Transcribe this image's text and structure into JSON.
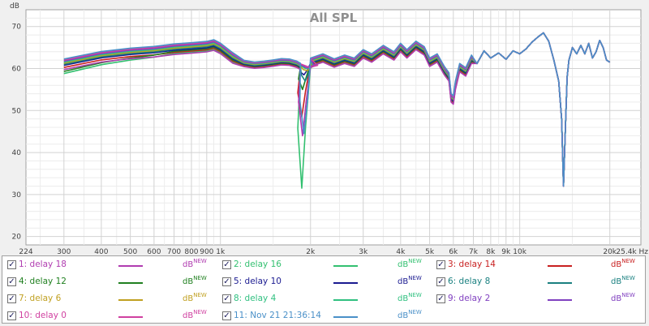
{
  "chart_data": {
    "type": "line",
    "title": "All SPL",
    "ylabel": "dB",
    "xunit": "Hz",
    "xscale": "log",
    "xlim": [
      224,
      25400
    ],
    "ylim": [
      18,
      74
    ],
    "grid": true,
    "x_ticks": [
      {
        "v": 224,
        "label": "224"
      },
      {
        "v": 300,
        "label": "300"
      },
      {
        "v": 400,
        "label": "400"
      },
      {
        "v": 500,
        "label": "500"
      },
      {
        "v": 600,
        "label": "600"
      },
      {
        "v": 700,
        "label": "700"
      },
      {
        "v": 800,
        "label": "800"
      },
      {
        "v": 900,
        "label": "900"
      },
      {
        "v": 1000,
        "label": "1k"
      },
      {
        "v": 2000,
        "label": "2k"
      },
      {
        "v": 3000,
        "label": "3k"
      },
      {
        "v": 4000,
        "label": "4k"
      },
      {
        "v": 5000,
        "label": "5k"
      },
      {
        "v": 6000,
        "label": "6k"
      },
      {
        "v": 7000,
        "label": "7k"
      },
      {
        "v": 8000,
        "label": "8k"
      },
      {
        "v": 9000,
        "label": "9k"
      },
      {
        "v": 10000,
        "label": "10k"
      },
      {
        "v": 20000,
        "label": "20k"
      },
      {
        "v": 25400,
        "label": "25,4k Hz"
      }
    ],
    "y_ticks": [
      20,
      30,
      40,
      50,
      60,
      70
    ],
    "common": {
      "x": [
        300,
        400,
        500,
        600,
        700,
        800,
        900,
        950,
        1000,
        1100,
        1200,
        1300,
        1400,
        1500,
        1600,
        1700,
        1800,
        1850
      ],
      "y": [
        61.0,
        62.8,
        63.6,
        64.0,
        64.6,
        64.9,
        65.2,
        65.6,
        64.8,
        62.5,
        61.2,
        60.8,
        61.0,
        61.3,
        61.6,
        61.5,
        61.0,
        60.5
      ]
    },
    "tail": {
      "x": [
        2000,
        2200,
        2400,
        2600,
        2800,
        3000,
        3200,
        3500,
        3800,
        4000,
        4200,
        4500,
        4800,
        5000,
        5300,
        5600,
        5800,
        5900,
        6000,
        6100,
        6300,
        6600,
        6900,
        7200,
        7600,
        8000,
        8500,
        9000,
        9500,
        10000,
        10500,
        11000,
        11500,
        12000,
        12500,
        13000,
        13500,
        13800,
        14000,
        14200,
        14400,
        14600,
        15000,
        15500,
        16000,
        16500,
        17000,
        17500,
        18000,
        18500,
        19000,
        19500,
        20000
      ],
      "y": [
        61.5,
        62.5,
        61.3,
        62.2,
        61.5,
        63.5,
        62.5,
        64.5,
        63.0,
        65.0,
        63.5,
        65.5,
        64.2,
        61.5,
        62.5,
        59.5,
        58.0,
        53.0,
        52.5,
        56.0,
        60.2,
        59.2,
        62.2,
        61.2,
        64.2,
        62.5,
        63.7,
        62.2,
        64.2,
        63.5,
        64.7,
        66.3,
        67.5,
        68.5,
        66.5,
        62.0,
        57.0,
        48.0,
        32.0,
        45.0,
        58.0,
        62.0,
        65.0,
        63.5,
        65.5,
        63.5,
        66.0,
        62.5,
        64.0,
        66.7,
        65.0,
        62.0,
        61.5
      ]
    },
    "series": [
      {
        "name": "1: delay 18",
        "color": "#b03cb0",
        "unit": "dB",
        "badge": "NEW",
        "dip_x": 1880,
        "dip_y": 44.0
      },
      {
        "name": "2: delay 16",
        "color": "#33c070",
        "unit": "dB",
        "badge": "NEW",
        "dip_x": 1870,
        "dip_y": 31.5
      },
      {
        "name": "3: delay 14",
        "color": "#c82020",
        "unit": "dB",
        "badge": "NEW",
        "dip_x": 1870,
        "dip_y": 48.5
      },
      {
        "name": "4: delay 12",
        "color": "#208020",
        "unit": "dB",
        "badge": "NEW",
        "dip_x": 1880,
        "dip_y": 55.0
      },
      {
        "name": "5: delay 10",
        "color": "#1a1a90",
        "unit": "dB",
        "badge": "NEW",
        "dip_x": 1900,
        "dip_y": 58.5
      },
      {
        "name": "6: delay 8",
        "color": "#1a8080",
        "unit": "dB",
        "badge": "NEW",
        "dip_x": 1920,
        "dip_y": 57.0
      },
      {
        "name": "7: delay 6",
        "color": "#c0a020",
        "unit": "dB",
        "badge": "NEW",
        "dip_x": 1950,
        "dip_y": 59.5
      },
      {
        "name": "8: delay 4",
        "color": "#30c080",
        "unit": "dB",
        "badge": "NEW",
        "dip_x": 1980,
        "dip_y": 60.0
      },
      {
        "name": "9: delay 2",
        "color": "#8040c0",
        "unit": "dB",
        "badge": "NEW",
        "dip_x": 2000,
        "dip_y": 60.3
      },
      {
        "name": "10: delay 0",
        "color": "#d040a0",
        "unit": "dB",
        "badge": "NEW",
        "dip_x": 2050,
        "dip_y": 60.5
      },
      {
        "name": "11: Nov 21 21:36:14",
        "color": "#4a90c8",
        "unit": "dB",
        "badge": "NEW",
        "dip_x": 1900,
        "dip_y": 44.5
      }
    ]
  },
  "legend_checked": "✓"
}
